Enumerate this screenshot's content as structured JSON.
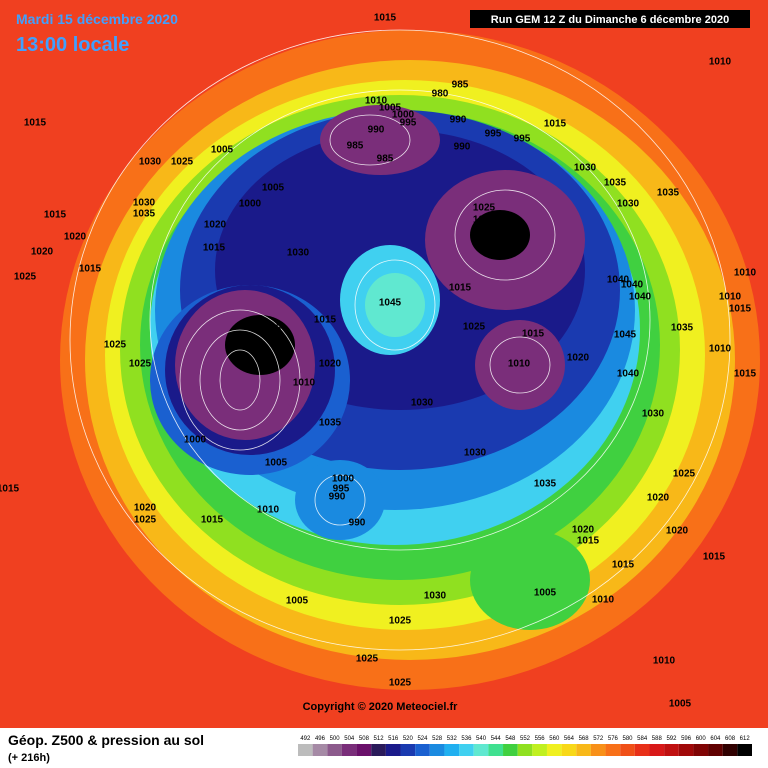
{
  "header": {
    "date": "Mardi 15 décembre 2020",
    "time": "13:00 locale",
    "run": "Run GEM 12 Z du Dimanche 6 décembre 2020"
  },
  "copyright": "Copyright © 2020 Meteociel.fr",
  "footer": {
    "title": "Géop. Z500 & pression au sol",
    "lead": "(+ 216h)"
  },
  "scale": {
    "values": [
      492,
      496,
      500,
      504,
      508,
      512,
      516,
      520,
      524,
      528,
      532,
      536,
      540,
      544,
      548,
      552,
      556,
      560,
      564,
      568,
      572,
      576,
      580,
      584,
      588,
      592,
      596,
      600,
      604,
      608,
      612
    ],
    "colors": [
      "#bcbcbc",
      "#a58aa5",
      "#8c5a8c",
      "#7a2e7a",
      "#6a106a",
      "#2a1a5a",
      "#1a1a8a",
      "#1a3ab0",
      "#1a60d0",
      "#1a8ae0",
      "#20b0f0",
      "#40d0f0",
      "#60e8d0",
      "#40e090",
      "#40d040",
      "#90e020",
      "#c0f020",
      "#f0f020",
      "#f8d818",
      "#f8b818",
      "#f89018",
      "#f87018",
      "#f05018",
      "#e83018",
      "#d81818",
      "#c01010",
      "#a00808",
      "#800404",
      "#600000",
      "#300000",
      "#000000"
    ]
  },
  "pressure_labels": [
    1015,
    1010,
    1015,
    1030,
    1025,
    1005,
    985,
    980,
    1010,
    1005,
    1000,
    995,
    990,
    990,
    985,
    985,
    995,
    995,
    990,
    1015,
    1030,
    1035,
    1030,
    1035,
    1005,
    1000,
    1030,
    1035,
    1015,
    1020,
    1020,
    1025,
    1025,
    1015,
    1030,
    1020,
    1015,
    1025,
    1015,
    1040,
    1040,
    1040,
    1010,
    1010,
    1015,
    1005,
    1015,
    1045,
    1025,
    1015,
    1025,
    1035,
    1045,
    1010,
    1020,
    1010,
    1025,
    1020,
    1040,
    1015,
    1010,
    1030,
    1035,
    1030,
    1000,
    1030,
    1005,
    1025,
    1000,
    995,
    990,
    1035,
    1015,
    1020,
    1020,
    1010,
    1025,
    1015,
    990,
    1020,
    1015,
    1020,
    1015,
    1015,
    1005,
    1030,
    1005,
    1010,
    1025,
    1025,
    1010,
    1025,
    1005
  ]
}
